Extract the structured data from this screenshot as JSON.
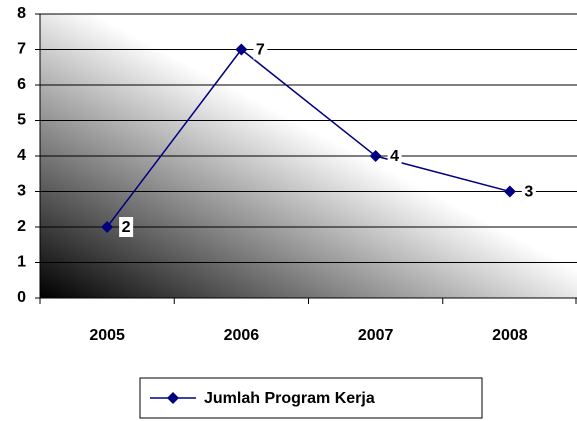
{
  "chart_data": {
    "type": "line",
    "categories": [
      "2005",
      "2006",
      "2007",
      "2008"
    ],
    "series": [
      {
        "name": "Jumlah Program Kerja",
        "color": "#000080",
        "values": [
          2,
          7,
          4,
          3
        ]
      }
    ],
    "ylim": [
      0,
      8
    ],
    "yticks": [
      0,
      1,
      2,
      3,
      4,
      5,
      6,
      7,
      8
    ],
    "grid": true,
    "legend": "bottom"
  }
}
